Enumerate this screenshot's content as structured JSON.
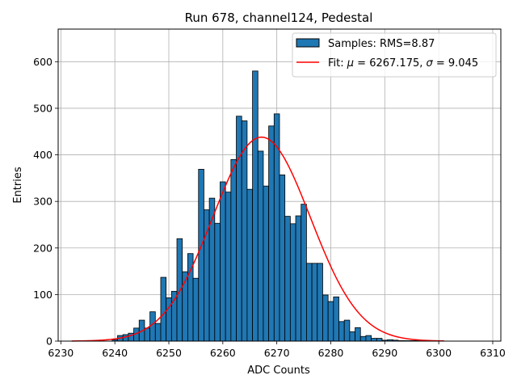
{
  "chart_data": {
    "type": "bar",
    "title": "Run 678, channel124, Pedestal",
    "xlabel": "ADC Counts",
    "ylabel": "Entries",
    "xlim": [
      6229.5,
      6311.5
    ],
    "ylim": [
      0,
      670
    ],
    "xticks": [
      6230,
      6240,
      6250,
      6260,
      6270,
      6280,
      6290,
      6300,
      6310
    ],
    "yticks": [
      0,
      100,
      200,
      300,
      400,
      500,
      600
    ],
    "grid": true,
    "legend_position": "top-right",
    "bar_color": "#1f77b4",
    "fit_color": "#ff0000",
    "bins": {
      "x": [
        6240,
        6241,
        6242,
        6243,
        6244,
        6245,
        6246,
        6247,
        6248,
        6249,
        6250,
        6251,
        6252,
        6253,
        6254,
        6255,
        6256,
        6257,
        6258,
        6259,
        6260,
        6261,
        6262,
        6263,
        6264,
        6265,
        6266,
        6267,
        6268,
        6269,
        6270,
        6271,
        6272,
        6273,
        6274,
        6275,
        6276,
        6277,
        6278,
        6279,
        6280,
        6281,
        6282,
        6283,
        6284,
        6285,
        6286,
        6287,
        6288,
        6289,
        6290,
        6291,
        6292,
        6293,
        6294,
        6295,
        6296,
        6297,
        6298,
        6299,
        6300
      ],
      "values": [
        3,
        12,
        14,
        17,
        28,
        45,
        28,
        63,
        38,
        137,
        93,
        107,
        220,
        149,
        188,
        135,
        369,
        282,
        307,
        253,
        342,
        320,
        390,
        483,
        473,
        326,
        580,
        408,
        333,
        462,
        488,
        357,
        268,
        252,
        269,
        294,
        167,
        167,
        167,
        99,
        85,
        95,
        42,
        45,
        20,
        29,
        10,
        12,
        6,
        6,
        2,
        3,
        2,
        1,
        1,
        1,
        1,
        1,
        1,
        1,
        1
      ],
      "width": 1
    },
    "legend": {
      "samples_label": "Samples: RMS=8.87",
      "fit_label_prefix": "Fit: ",
      "mu_symbol": "μ",
      "mu_text": " = 6267.175, ",
      "sigma_symbol": "σ",
      "sigma_text": " = 9.045"
    },
    "fit": {
      "mu": 6267.175,
      "sigma": 9.045,
      "amplitude": 438,
      "x_range": [
        6232,
        6301
      ]
    }
  }
}
